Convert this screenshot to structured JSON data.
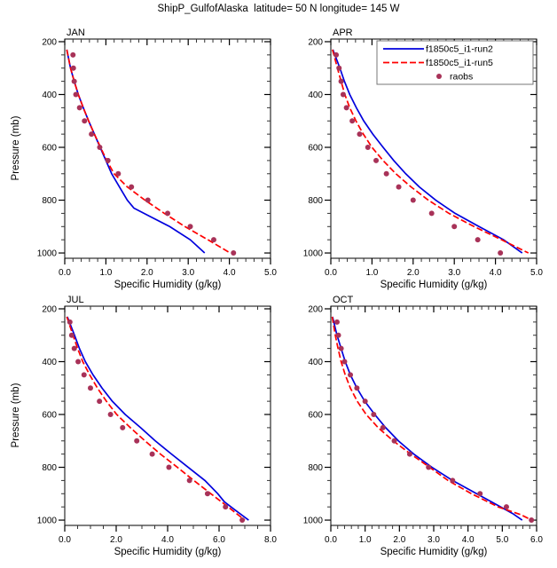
{
  "page": {
    "title": "ShipP_GulfofAlaska  latitude= 50 N longitude= 145 W"
  },
  "axes": {
    "xlabel": "Specific Humidity (g/kg)",
    "ylabel": "Pressure (mb)"
  },
  "legend": {
    "entries": [
      {
        "label": "f1850c5_i1-run2",
        "style": "line-solid",
        "color": "#0000dd"
      },
      {
        "label": "f1850c5_i1-run5",
        "style": "line-dashed",
        "color": "#ff0000"
      },
      {
        "label": "raobs",
        "style": "dot",
        "color": "#a83258"
      }
    ]
  },
  "chart_data": [
    {
      "type": "line",
      "month": "JAN",
      "xlabel": "Specific Humidity (g/kg)",
      "ylabel": "Pressure (mb)",
      "xlim": [
        0.0,
        5.0
      ],
      "xtick_step": 1.0,
      "xminor_step": 0.2,
      "ylim": [
        200,
        1000
      ],
      "ytick_step": 200,
      "yminor_step": 50,
      "y_axis_inverted": true,
      "show_legend": false,
      "series": [
        {
          "name": "f1850c5_i1-run2",
          "color": "#0000dd",
          "dash": null,
          "points_pressure_q": [
            [
              230,
              0.05
            ],
            [
              300,
              0.14
            ],
            [
              350,
              0.23
            ],
            [
              400,
              0.33
            ],
            [
              450,
              0.45
            ],
            [
              500,
              0.58
            ],
            [
              550,
              0.72
            ],
            [
              600,
              0.86
            ],
            [
              650,
              1.0
            ],
            [
              700,
              1.14
            ],
            [
              750,
              1.33
            ],
            [
              800,
              1.52
            ],
            [
              830,
              1.68
            ],
            [
              860,
              2.05
            ],
            [
              900,
              2.55
            ],
            [
              950,
              3.05
            ],
            [
              1000,
              3.4
            ]
          ]
        },
        {
          "name": "f1850c5_i1-run5",
          "color": "#ff0000",
          "dash": "7,3",
          "points_pressure_q": [
            [
              230,
              0.05
            ],
            [
              300,
              0.14
            ],
            [
              350,
              0.23
            ],
            [
              400,
              0.33
            ],
            [
              450,
              0.45
            ],
            [
              500,
              0.58
            ],
            [
              550,
              0.72
            ],
            [
              600,
              0.87
            ],
            [
              650,
              1.02
            ],
            [
              700,
              1.2
            ],
            [
              750,
              1.52
            ],
            [
              800,
              1.95
            ],
            [
              850,
              2.42
            ],
            [
              900,
              2.92
            ],
            [
              950,
              3.48
            ],
            [
              1000,
              4.02
            ]
          ]
        }
      ],
      "raobs": {
        "name": "raobs",
        "color": "#a83258",
        "points_pressure_q": [
          [
            250,
            0.2
          ],
          [
            300,
            0.21
          ],
          [
            350,
            0.23
          ],
          [
            400,
            0.27
          ],
          [
            450,
            0.36
          ],
          [
            500,
            0.48
          ],
          [
            550,
            0.65
          ],
          [
            600,
            0.85
          ],
          [
            650,
            1.05
          ],
          [
            700,
            1.3
          ],
          [
            750,
            1.62
          ],
          [
            800,
            2.02
          ],
          [
            850,
            2.5
          ],
          [
            900,
            3.05
          ],
          [
            950,
            3.62
          ],
          [
            1000,
            4.1
          ]
        ]
      }
    },
    {
      "type": "line",
      "month": "APR",
      "xlabel": "Specific Humidity (g/kg)",
      "ylabel": "Pressure (mb)",
      "xlim": [
        0.0,
        5.0
      ],
      "xtick_step": 1.0,
      "xminor_step": 0.2,
      "ylim": [
        200,
        1000
      ],
      "ytick_step": 200,
      "yminor_step": 50,
      "y_axis_inverted": true,
      "show_legend": true,
      "series": [
        {
          "name": "f1850c5_i1-run2",
          "color": "#0000dd",
          "dash": null,
          "points_pressure_q": [
            [
              230,
              0.05
            ],
            [
              300,
              0.22
            ],
            [
              350,
              0.33
            ],
            [
              400,
              0.46
            ],
            [
              450,
              0.62
            ],
            [
              500,
              0.8
            ],
            [
              550,
              1.02
            ],
            [
              600,
              1.27
            ],
            [
              650,
              1.53
            ],
            [
              700,
              1.82
            ],
            [
              750,
              2.15
            ],
            [
              800,
              2.55
            ],
            [
              850,
              3.02
            ],
            [
              900,
              3.6
            ],
            [
              950,
              4.2
            ],
            [
              1000,
              4.65
            ]
          ]
        },
        {
          "name": "f1850c5_i1-run5",
          "color": "#ff0000",
          "dash": "7,3",
          "points_pressure_q": [
            [
              230,
              0.04
            ],
            [
              300,
              0.16
            ],
            [
              350,
              0.25
            ],
            [
              400,
              0.34
            ],
            [
              450,
              0.46
            ],
            [
              500,
              0.61
            ],
            [
              550,
              0.79
            ],
            [
              600,
              1.0
            ],
            [
              650,
              1.27
            ],
            [
              700,
              1.58
            ],
            [
              750,
              1.95
            ],
            [
              800,
              2.37
            ],
            [
              850,
              2.87
            ],
            [
              900,
              3.48
            ],
            [
              950,
              4.15
            ],
            [
              1000,
              4.8
            ]
          ]
        }
      ],
      "raobs": {
        "name": "raobs",
        "color": "#a83258",
        "points_pressure_q": [
          [
            250,
            0.13
          ],
          [
            300,
            0.2
          ],
          [
            350,
            0.25
          ],
          [
            400,
            0.3
          ],
          [
            450,
            0.38
          ],
          [
            500,
            0.52
          ],
          [
            550,
            0.7
          ],
          [
            600,
            0.9
          ],
          [
            650,
            1.1
          ],
          [
            700,
            1.35
          ],
          [
            750,
            1.65
          ],
          [
            800,
            2.0
          ],
          [
            850,
            2.45
          ],
          [
            900,
            3.0
          ],
          [
            950,
            3.57
          ],
          [
            1000,
            4.12
          ]
        ]
      }
    },
    {
      "type": "line",
      "month": "JUL",
      "xlabel": "Specific Humidity (g/kg)",
      "ylabel": "Pressure (mb)",
      "xlim": [
        0.0,
        8.0
      ],
      "xtick_step": 2.0,
      "xminor_step": 0.5,
      "ylim": [
        200,
        1000
      ],
      "ytick_step": 200,
      "yminor_step": 50,
      "y_axis_inverted": true,
      "show_legend": false,
      "series": [
        {
          "name": "f1850c5_i1-run2",
          "color": "#0000dd",
          "dash": null,
          "points_pressure_q": [
            [
              230,
              0.1
            ],
            [
              300,
              0.38
            ],
            [
              350,
              0.57
            ],
            [
              400,
              0.8
            ],
            [
              450,
              1.1
            ],
            [
              500,
              1.45
            ],
            [
              550,
              1.85
            ],
            [
              600,
              2.35
            ],
            [
              650,
              2.95
            ],
            [
              700,
              3.52
            ],
            [
              750,
              4.15
            ],
            [
              800,
              4.8
            ],
            [
              850,
              5.45
            ],
            [
              900,
              5.95
            ],
            [
              930,
              6.2
            ],
            [
              960,
              6.6
            ],
            [
              1000,
              7.15
            ]
          ]
        },
        {
          "name": "f1850c5_i1-run5",
          "color": "#ff0000",
          "dash": "7,3",
          "points_pressure_q": [
            [
              230,
              0.08
            ],
            [
              300,
              0.32
            ],
            [
              350,
              0.5
            ],
            [
              400,
              0.7
            ],
            [
              450,
              0.97
            ],
            [
              500,
              1.27
            ],
            [
              550,
              1.62
            ],
            [
              600,
              2.02
            ],
            [
              650,
              2.55
            ],
            [
              700,
              3.12
            ],
            [
              750,
              3.72
            ],
            [
              800,
              4.38
            ],
            [
              850,
              5.02
            ],
            [
              900,
              5.68
            ],
            [
              950,
              6.35
            ],
            [
              1000,
              7.0
            ]
          ]
        }
      ],
      "raobs": {
        "name": "raobs",
        "color": "#a83258",
        "points_pressure_q": [
          [
            250,
            0.2
          ],
          [
            300,
            0.27
          ],
          [
            350,
            0.37
          ],
          [
            400,
            0.52
          ],
          [
            450,
            0.75
          ],
          [
            500,
            1.0
          ],
          [
            550,
            1.35
          ],
          [
            600,
            1.78
          ],
          [
            650,
            2.25
          ],
          [
            700,
            2.8
          ],
          [
            750,
            3.4
          ],
          [
            800,
            4.05
          ],
          [
            850,
            4.85
          ],
          [
            900,
            5.55
          ],
          [
            950,
            6.25
          ],
          [
            1000,
            6.9
          ]
        ]
      }
    },
    {
      "type": "line",
      "month": "OCT",
      "xlabel": "Specific Humidity (g/kg)",
      "ylabel": "Pressure (mb)",
      "xlim": [
        0.0,
        6.0
      ],
      "xtick_step": 1.0,
      "xminor_step": 0.2,
      "ylim": [
        200,
        1000
      ],
      "ytick_step": 200,
      "yminor_step": 50,
      "y_axis_inverted": true,
      "show_legend": false,
      "series": [
        {
          "name": "f1850c5_i1-run2",
          "color": "#0000dd",
          "dash": null,
          "points_pressure_q": [
            [
              230,
              0.05
            ],
            [
              300,
              0.18
            ],
            [
              350,
              0.3
            ],
            [
              400,
              0.42
            ],
            [
              450,
              0.57
            ],
            [
              500,
              0.76
            ],
            [
              550,
              0.99
            ],
            [
              600,
              1.28
            ],
            [
              650,
              1.6
            ],
            [
              700,
              1.97
            ],
            [
              750,
              2.42
            ],
            [
              800,
              2.95
            ],
            [
              850,
              3.55
            ],
            [
              900,
              4.25
            ],
            [
              950,
              4.95
            ],
            [
              975,
              5.3
            ],
            [
              1000,
              5.58
            ]
          ]
        },
        {
          "name": "f1850c5_i1-run5",
          "color": "#ff0000",
          "dash": "7,3",
          "points_pressure_q": [
            [
              230,
              0.04
            ],
            [
              300,
              0.13
            ],
            [
              350,
              0.21
            ],
            [
              400,
              0.3
            ],
            [
              450,
              0.42
            ],
            [
              500,
              0.57
            ],
            [
              550,
              0.77
            ],
            [
              600,
              1.03
            ],
            [
              650,
              1.38
            ],
            [
              700,
              1.82
            ],
            [
              750,
              2.33
            ],
            [
              800,
              2.88
            ],
            [
              850,
              3.42
            ],
            [
              900,
              4.1
            ],
            [
              950,
              4.88
            ],
            [
              980,
              5.55
            ],
            [
              995,
              5.78
            ]
          ]
        }
      ],
      "raobs": {
        "name": "raobs",
        "color": "#a83258",
        "points_pressure_q": [
          [
            250,
            0.18
          ],
          [
            300,
            0.22
          ],
          [
            350,
            0.3
          ],
          [
            400,
            0.4
          ],
          [
            450,
            0.57
          ],
          [
            500,
            0.76
          ],
          [
            550,
            1.0
          ],
          [
            600,
            1.25
          ],
          [
            650,
            1.52
          ],
          [
            700,
            1.85
          ],
          [
            750,
            2.3
          ],
          [
            800,
            2.85
          ],
          [
            850,
            3.55
          ],
          [
            900,
            4.35
          ],
          [
            950,
            5.12
          ],
          [
            1000,
            5.85
          ]
        ]
      }
    }
  ]
}
